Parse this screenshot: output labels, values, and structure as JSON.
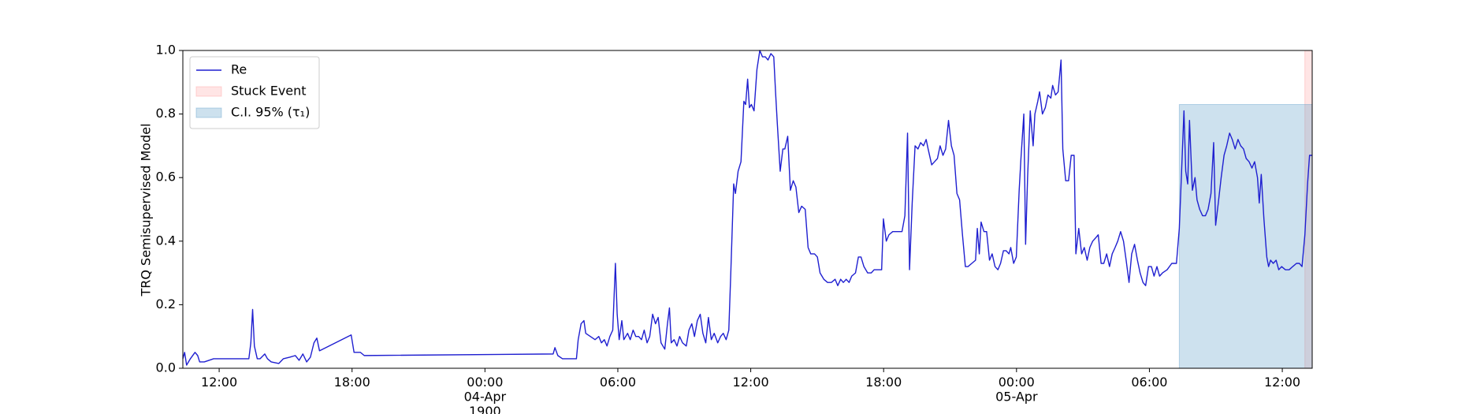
{
  "chart_data": {
    "type": "line",
    "ylabel": "TRQ Semisupervised Model",
    "x": [
      -13.64,
      -13.56,
      -13.47,
      -13.3,
      -13.09,
      -12.97,
      -12.88,
      -12.67,
      -12.46,
      -12.25,
      -10.99,
      -10.66,
      -10.57,
      -10.49,
      -10.41,
      -10.28,
      -10.15,
      -9.94,
      -9.82,
      -9.65,
      -9.31,
      -9.1,
      -8.81,
      -8.56,
      -8.39,
      -8.22,
      -8.05,
      -7.88,
      -7.72,
      -7.59,
      -7.47,
      -6.04,
      -5.91,
      -5.62,
      -5.45,
      3.08,
      3.16,
      3.29,
      3.5,
      4.13,
      4.21,
      4.34,
      4.47,
      4.55,
      4.76,
      4.97,
      5.14,
      5.26,
      5.39,
      5.51,
      5.64,
      5.77,
      5.85,
      5.89,
      5.97,
      6.06,
      6.18,
      6.27,
      6.44,
      6.56,
      6.69,
      6.81,
      6.94,
      7.07,
      7.19,
      7.32,
      7.44,
      7.57,
      7.7,
      7.82,
      7.95,
      8.12,
      8.24,
      8.33,
      8.41,
      8.54,
      8.67,
      8.79,
      8.92,
      9.09,
      9.21,
      9.34,
      9.46,
      9.59,
      9.72,
      9.84,
      9.97,
      10.09,
      10.22,
      10.35,
      10.51,
      10.64,
      10.76,
      10.89,
      11.01,
      11.1,
      11.23,
      11.31,
      11.43,
      11.56,
      11.69,
      11.77,
      11.86,
      11.94,
      12.03,
      12.15,
      12.28,
      12.41,
      12.53,
      12.66,
      12.78,
      12.91,
      13.04,
      13.12,
      13.2,
      13.33,
      13.45,
      13.54,
      13.67,
      13.79,
      13.92,
      14.04,
      14.17,
      14.3,
      14.46,
      14.59,
      14.71,
      14.88,
      15.01,
      15.13,
      15.3,
      15.47,
      15.64,
      15.81,
      15.93,
      16.06,
      16.18,
      16.31,
      16.44,
      16.56,
      16.73,
      16.86,
      16.98,
      17.11,
      17.28,
      17.44,
      17.57,
      17.78,
      17.91,
      17.99,
      18.12,
      18.24,
      18.41,
      18.62,
      18.83,
      18.96,
      19.08,
      19.17,
      19.29,
      19.42,
      19.55,
      19.67,
      19.8,
      19.92,
      20.01,
      20.17,
      20.3,
      20.43,
      20.55,
      20.68,
      20.8,
      20.93,
      21.06,
      21.18,
      21.31,
      21.43,
      21.56,
      21.69,
      21.81,
      21.98,
      22.15,
      22.23,
      22.32,
      22.4,
      22.53,
      22.65,
      22.78,
      22.9,
      23.03,
      23.16,
      23.28,
      23.41,
      23.53,
      23.66,
      23.74,
      23.87,
      23.99,
      24.12,
      24.2,
      24.33,
      24.41,
      24.5,
      24.62,
      24.75,
      24.83,
      24.96,
      25.04,
      25.17,
      25.3,
      25.42,
      25.55,
      25.63,
      25.76,
      25.88,
      26.01,
      26.09,
      26.22,
      26.35,
      26.47,
      26.6,
      26.68,
      26.81,
      26.94,
      27.06,
      27.19,
      27.31,
      27.44,
      27.57,
      27.69,
      27.82,
      27.94,
      28.07,
      28.2,
      28.32,
      28.45,
      28.57,
      28.7,
      28.83,
      28.95,
      29.08,
      29.2,
      29.33,
      29.46,
      29.58,
      29.71,
      29.83,
      29.96,
      30.09,
      30.21,
      30.34,
      30.46,
      30.59,
      30.8,
      31.01,
      31.22,
      31.35,
      31.47,
      31.56,
      31.64,
      31.73,
      31.81,
      31.94,
      32.06,
      32.15,
      32.27,
      32.4,
      32.53,
      32.65,
      32.78,
      32.9,
      32.99,
      33.11,
      33.24,
      33.37,
      33.49,
      33.62,
      33.74,
      33.87,
      34.0,
      34.12,
      34.25,
      34.37,
      34.5,
      34.63,
      34.75,
      34.88,
      34.96,
      35.05,
      35.17,
      35.3,
      35.38,
      35.47,
      35.59,
      35.72,
      35.84,
      35.97,
      36.14,
      36.31,
      36.47,
      36.64,
      36.77,
      36.89,
      37.02,
      37.14,
      37.23,
      37.35
    ],
    "series": [
      {
        "name": "Re",
        "color": "#1f1fd0",
        "values": [
          0.03,
          0.05,
          0.01,
          0.03,
          0.05,
          0.04,
          0.02,
          0.02,
          0.025,
          0.03,
          0.03,
          0.03,
          0.08,
          0.185,
          0.07,
          0.03,
          0.03,
          0.045,
          0.03,
          0.02,
          0.015,
          0.03,
          0.035,
          0.04,
          0.025,
          0.045,
          0.02,
          0.035,
          0.08,
          0.095,
          0.055,
          0.105,
          0.05,
          0.05,
          0.04,
          0.045,
          0.065,
          0.04,
          0.03,
          0.03,
          0.09,
          0.14,
          0.15,
          0.11,
          0.1,
          0.09,
          0.1,
          0.08,
          0.09,
          0.07,
          0.1,
          0.12,
          0.26,
          0.33,
          0.17,
          0.09,
          0.15,
          0.09,
          0.11,
          0.09,
          0.12,
          0.1,
          0.1,
          0.09,
          0.12,
          0.08,
          0.1,
          0.17,
          0.14,
          0.16,
          0.08,
          0.06,
          0.14,
          0.19,
          0.08,
          0.09,
          0.07,
          0.1,
          0.08,
          0.07,
          0.12,
          0.14,
          0.1,
          0.15,
          0.17,
          0.11,
          0.08,
          0.16,
          0.09,
          0.11,
          0.08,
          0.1,
          0.11,
          0.09,
          0.12,
          0.3,
          0.58,
          0.55,
          0.62,
          0.65,
          0.84,
          0.83,
          0.91,
          0.82,
          0.83,
          0.81,
          0.94,
          1.0,
          0.98,
          0.98,
          0.97,
          0.99,
          0.98,
          0.87,
          0.77,
          0.62,
          0.69,
          0.69,
          0.73,
          0.56,
          0.59,
          0.57,
          0.49,
          0.51,
          0.5,
          0.38,
          0.36,
          0.36,
          0.35,
          0.3,
          0.28,
          0.27,
          0.27,
          0.28,
          0.26,
          0.28,
          0.27,
          0.28,
          0.27,
          0.29,
          0.3,
          0.35,
          0.35,
          0.32,
          0.3,
          0.3,
          0.31,
          0.31,
          0.31,
          0.47,
          0.4,
          0.42,
          0.43,
          0.43,
          0.43,
          0.48,
          0.74,
          0.31,
          0.52,
          0.7,
          0.69,
          0.71,
          0.7,
          0.72,
          0.69,
          0.64,
          0.65,
          0.66,
          0.7,
          0.67,
          0.69,
          0.78,
          0.7,
          0.67,
          0.55,
          0.53,
          0.42,
          0.32,
          0.32,
          0.33,
          0.34,
          0.44,
          0.36,
          0.46,
          0.43,
          0.43,
          0.34,
          0.36,
          0.32,
          0.31,
          0.33,
          0.37,
          0.37,
          0.36,
          0.38,
          0.33,
          0.35,
          0.56,
          0.66,
          0.8,
          0.39,
          0.6,
          0.81,
          0.7,
          0.8,
          0.84,
          0.87,
          0.8,
          0.82,
          0.86,
          0.85,
          0.89,
          0.86,
          0.87,
          0.97,
          0.69,
          0.59,
          0.59,
          0.67,
          0.67,
          0.36,
          0.44,
          0.36,
          0.38,
          0.34,
          0.38,
          0.4,
          0.41,
          0.42,
          0.33,
          0.33,
          0.36,
          0.32,
          0.36,
          0.38,
          0.4,
          0.43,
          0.4,
          0.34,
          0.27,
          0.36,
          0.39,
          0.34,
          0.3,
          0.27,
          0.26,
          0.32,
          0.32,
          0.29,
          0.32,
          0.29,
          0.3,
          0.31,
          0.33,
          0.33,
          0.44,
          0.65,
          0.81,
          0.62,
          0.58,
          0.78,
          0.56,
          0.6,
          0.53,
          0.5,
          0.48,
          0.48,
          0.5,
          0.55,
          0.71,
          0.45,
          0.52,
          0.6,
          0.67,
          0.7,
          0.74,
          0.72,
          0.69,
          0.72,
          0.7,
          0.69,
          0.66,
          0.65,
          0.63,
          0.65,
          0.6,
          0.52,
          0.61,
          0.47,
          0.35,
          0.32,
          0.34,
          0.33,
          0.34,
          0.31,
          0.32,
          0.31,
          0.31,
          0.32,
          0.33,
          0.33,
          0.32,
          0.42,
          0.58,
          0.67,
          0.67
        ]
      }
    ],
    "spans": [
      {
        "name": "Stuck Event",
        "color": "#ff9999",
        "x": [
          37.02,
          37.35
        ],
        "y": [
          0,
          1
        ]
      },
      {
        "name": "C.I. 95% (τ₁)",
        "color": "#5b9bc8",
        "x": [
          31.35,
          37.35
        ],
        "y": [
          0,
          0.83
        ]
      }
    ],
    "xlim": [
      -13.64,
      37.35
    ],
    "xticks": [
      {
        "value": -12,
        "label": "12:00"
      },
      {
        "value": -6,
        "label": "18:00"
      },
      {
        "value": 0,
        "label": "00:00\n04-Apr\n1900"
      },
      {
        "value": 6,
        "label": "06:00"
      },
      {
        "value": 12,
        "label": "12:00"
      },
      {
        "value": 18,
        "label": "18:00"
      },
      {
        "value": 24,
        "label": "00:00\n05-Apr"
      },
      {
        "value": 30,
        "label": "06:00"
      },
      {
        "value": 36,
        "label": "12:00"
      }
    ],
    "ylim": [
      0,
      1
    ],
    "yticks": [
      {
        "value": 0,
        "label": "0.0"
      },
      {
        "value": 0.2,
        "label": "0.2"
      },
      {
        "value": 0.4,
        "label": "0.4"
      },
      {
        "value": 0.6,
        "label": "0.6"
      },
      {
        "value": 0.8,
        "label": "0.8"
      },
      {
        "value": 1,
        "label": "1.0"
      }
    ],
    "legend": "upper left"
  }
}
